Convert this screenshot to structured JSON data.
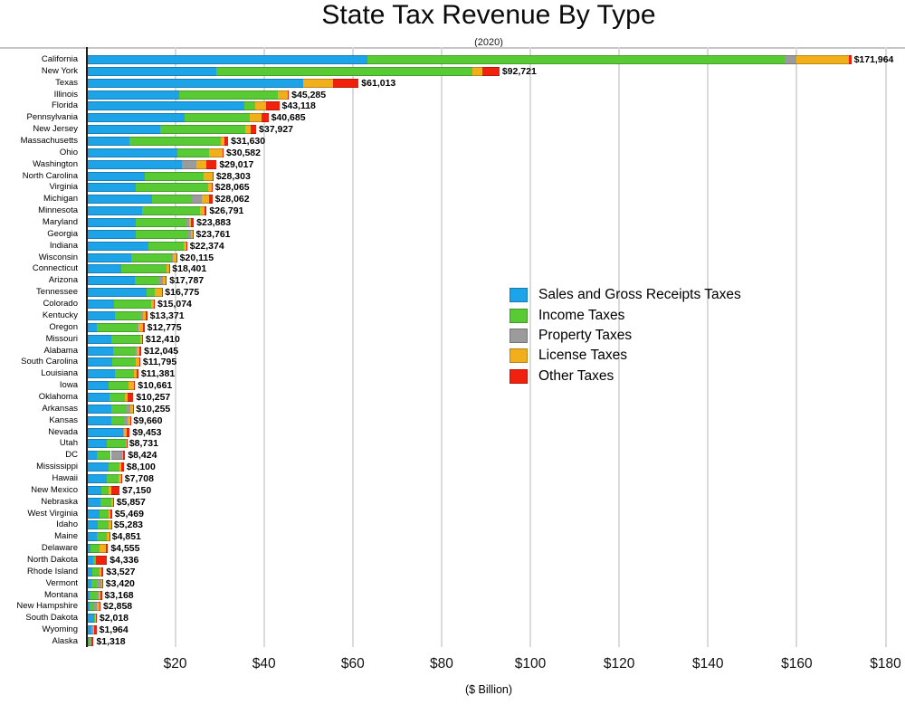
{
  "title": "State Tax Revenue By Type",
  "subtitle": "(2020)",
  "x_axis": {
    "label": "($ Billion)",
    "tick_values": [
      20,
      40,
      60,
      80,
      100,
      120,
      140,
      160,
      180
    ],
    "tick_labels": [
      "$20",
      "$40",
      "$60",
      "$80",
      "$100",
      "$120",
      "$140",
      "$160",
      "$180"
    ],
    "max": 181.5,
    "grid": true
  },
  "legend": {
    "position": "center-right",
    "items": [
      {
        "label": "Sales and Gross Receipts Taxes",
        "color": "#1CA3E8"
      },
      {
        "label": "Income Taxes",
        "color": "#58CB34"
      },
      {
        "label": "Property Taxes",
        "color": "#9B9B9B"
      },
      {
        "label": "License Taxes",
        "color": "#F0AF1B"
      },
      {
        "label": "Other Taxes",
        "color": "#F0220D"
      }
    ]
  },
  "chart_data": {
    "type": "bar",
    "stacked": true,
    "orientation": "horizontal",
    "unit": "USD millions",
    "value_label_format": "$#,###",
    "series_names": [
      "Sales and Gross Receipts Taxes",
      "Income Taxes",
      "Property Taxes",
      "License Taxes",
      "Other Taxes"
    ],
    "series_colors": [
      "#1CA3E8",
      "#58CB34",
      "#9B9B9B",
      "#F0AF1B",
      "#F0220D"
    ],
    "rows": [
      {
        "state": "California",
        "total": 171964,
        "label": "$171,964",
        "values": [
          62900,
          94100,
          2700,
          11700,
          564
        ]
      },
      {
        "state": "New York",
        "total": 92721,
        "label": "$92,721",
        "values": [
          28900,
          57700,
          50,
          2150,
          3921
        ]
      },
      {
        "state": "Texas",
        "total": 61013,
        "label": "$61,013",
        "values": [
          48500,
          0,
          0,
          6800,
          5713
        ]
      },
      {
        "state": "Illinois",
        "total": 45285,
        "label": "$45,285",
        "values": [
          20500,
          22300,
          100,
          2100,
          285
        ]
      },
      {
        "state": "Florida",
        "total": 43118,
        "label": "$43,118",
        "values": [
          35300,
          2400,
          20,
          2500,
          2898
        ]
      },
      {
        "state": "Pennsylvania",
        "total": 40685,
        "label": "$40,685",
        "values": [
          21800,
          14600,
          40,
          2600,
          1645
        ]
      },
      {
        "state": "New Jersey",
        "total": 37927,
        "label": "$37,927",
        "values": [
          16300,
          19100,
          10,
          1200,
          1317
        ]
      },
      {
        "state": "Massachusetts",
        "total": 31630,
        "label": "$31,630",
        "values": [
          9300,
          20700,
          10,
          820,
          800
        ]
      },
      {
        "state": "Ohio",
        "total": 30582,
        "label": "$30,582",
        "values": [
          20100,
          7300,
          0,
          3000,
          182
        ]
      },
      {
        "state": "Washington",
        "total": 29017,
        "label": "$29,017",
        "values": [
          21300,
          0,
          3200,
          2300,
          2217
        ]
      },
      {
        "state": "North Carolina",
        "total": 28303,
        "label": "$28,303",
        "values": [
          12800,
          13200,
          0,
          2200,
          103
        ]
      },
      {
        "state": "Virginia",
        "total": 28065,
        "label": "$28,065",
        "values": [
          10900,
          16265,
          0,
          700,
          200
        ]
      },
      {
        "state": "Michigan",
        "total": 28062,
        "label": "$28,062",
        "values": [
          14400,
          9000,
          2200,
          1800,
          662
        ]
      },
      {
        "state": "Minnesota",
        "total": 26791,
        "label": "$26,791",
        "values": [
          12300,
          12900,
          100,
          1000,
          491
        ]
      },
      {
        "state": "Maryland",
        "total": 23883,
        "label": "$23,883",
        "values": [
          10750,
          11450,
          550,
          550,
          583
        ]
      },
      {
        "state": "Georgia",
        "total": 23761,
        "label": "$23,761",
        "values": [
          10750,
          11950,
          450,
          500,
          111
        ]
      },
      {
        "state": "Indiana",
        "total": 22374,
        "label": "$22,374",
        "values": [
          13700,
          8000,
          0,
          600,
          74
        ]
      },
      {
        "state": "Wisconsin",
        "total": 20115,
        "label": "$20,115",
        "values": [
          9700,
          9300,
          100,
          900,
          115
        ]
      },
      {
        "state": "Connecticut",
        "total": 18401,
        "label": "$18,401",
        "values": [
          7600,
          10200,
          0,
          450,
          151
        ]
      },
      {
        "state": "Arizona",
        "total": 17787,
        "label": "$17,787",
        "values": [
          10700,
          5400,
          900,
          600,
          187
        ]
      },
      {
        "state": "Tennessee",
        "total": 16775,
        "label": "$16,775",
        "values": [
          13300,
          1800,
          0,
          1600,
          75
        ]
      },
      {
        "state": "Colorado",
        "total": 15074,
        "label": "$15,074",
        "values": [
          5900,
          8400,
          0,
          650,
          124
        ]
      },
      {
        "state": "Kentucky",
        "total": 13371,
        "label": "$13,371",
        "values": [
          6200,
          5600,
          650,
          600,
          321
        ]
      },
      {
        "state": "Oregon",
        "total": 12775,
        "label": "$12,775",
        "values": [
          2000,
          9300,
          20,
          1100,
          355
        ]
      },
      {
        "state": "Missouri",
        "total": 12410,
        "label": "$12,410",
        "values": [
          5200,
          6600,
          30,
          500,
          80
        ]
      },
      {
        "state": "Alabama",
        "total": 12045,
        "label": "$12,045",
        "values": [
          5800,
          4900,
          350,
          550,
          445
        ]
      },
      {
        "state": "South Carolina",
        "total": 11795,
        "label": "$11,795",
        "values": [
          5500,
          5300,
          20,
          750,
          225
        ]
      },
      {
        "state": "Louisiana",
        "total": 11381,
        "label": "$11,381",
        "values": [
          6200,
          4200,
          60,
          500,
          421
        ]
      },
      {
        "state": "Iowa",
        "total": 10661,
        "label": "$10,661",
        "values": [
          4700,
          4500,
          0,
          1150,
          311
        ]
      },
      {
        "state": "Oklahoma",
        "total": 10257,
        "label": "$10,257",
        "values": [
          4900,
          3400,
          0,
          750,
          1207
        ]
      },
      {
        "state": "Arkansas",
        "total": 10255,
        "label": "$10,255",
        "values": [
          5400,
          3300,
          800,
          600,
          155
        ]
      },
      {
        "state": "Kansas",
        "total": 9660,
        "label": "$9,660",
        "values": [
          5200,
          3000,
          700,
          600,
          160
        ]
      },
      {
        "state": "Nevada",
        "total": 9453,
        "label": "$9,453",
        "values": [
          7900,
          0,
          300,
          550,
          703
        ]
      },
      {
        "state": "Utah",
        "total": 8731,
        "label": "$8,731",
        "values": [
          4200,
          4300,
          0,
          200,
          31
        ]
      },
      {
        "state": "DC",
        "total": 8424,
        "label": "$8,424",
        "values": [
          2000,
          3200,
          2500,
          200,
          524
        ]
      },
      {
        "state": "Mississippi",
        "total": 8100,
        "label": "$8,100",
        "values": [
          4600,
          2500,
          30,
          500,
          470
        ]
      },
      {
        "state": "Hawaii",
        "total": 7708,
        "label": "$7,708",
        "values": [
          4300,
          2600,
          0,
          550,
          258
        ]
      },
      {
        "state": "New Mexico",
        "total": 7150,
        "label": "$7,150",
        "values": [
          3100,
          1550,
          50,
          650,
          1800
        ]
      },
      {
        "state": "Nebraska",
        "total": 5857,
        "label": "$5,857",
        "values": [
          2900,
          2450,
          0,
          450,
          57
        ]
      },
      {
        "state": "West Virginia",
        "total": 5469,
        "label": "$5,469",
        "values": [
          2650,
          2000,
          10,
          360,
          449
        ]
      },
      {
        "state": "Idaho",
        "total": 5283,
        "label": "$5,283",
        "values": [
          2250,
          2450,
          0,
          570,
          13
        ]
      },
      {
        "state": "Maine",
        "total": 4851,
        "label": "$4,851",
        "values": [
          2100,
          2200,
          40,
          480,
          31
        ]
      },
      {
        "state": "Delaware",
        "total": 4555,
        "label": "$4,555",
        "values": [
          600,
          2000,
          0,
          1500,
          455
        ]
      },
      {
        "state": "North Dakota",
        "total": 4336,
        "label": "$4,336",
        "values": [
          1150,
          600,
          0,
          100,
          2486
        ]
      },
      {
        "state": "Rhode Island",
        "total": 3527,
        "label": "$3,527",
        "values": [
          1000,
          1600,
          2,
          550,
          375
        ]
      },
      {
        "state": "Vermont",
        "total": 3420,
        "label": "$3,420",
        "values": [
          900,
          1200,
          1000,
          230,
          90
        ]
      },
      {
        "state": "Montana",
        "total": 3168,
        "label": "$3,168",
        "values": [
          350,
          1700,
          300,
          450,
          368
        ]
      },
      {
        "state": "New Hampshire",
        "total": 2858,
        "label": "$2,858",
        "values": [
          500,
          950,
          550,
          650,
          208
        ]
      },
      {
        "state": "South Dakota",
        "total": 2018,
        "label": "$2,018",
        "values": [
          1400,
          150,
          0,
          350,
          118
        ]
      },
      {
        "state": "Wyoming",
        "total": 1964,
        "label": "$1,964",
        "values": [
          750,
          0,
          550,
          150,
          514
        ]
      },
      {
        "state": "Alaska",
        "total": 1318,
        "label": "$1,318",
        "values": [
          300,
          350,
          120,
          110,
          438
        ]
      }
    ]
  },
  "style_colors": {
    "grid": "#dadada",
    "axis": "#1c1c1c",
    "background": "#ffffff",
    "text": "#000000"
  }
}
